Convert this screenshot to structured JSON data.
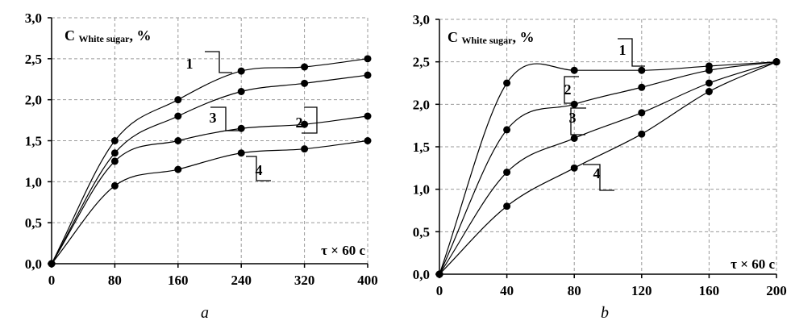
{
  "chart_data": [
    {
      "type": "line",
      "title": "C",
      "title_sub": "White sugar",
      "title_unit": ", %",
      "xlabel": "τ × 60 с",
      "caption": "a",
      "xlim": [
        0,
        400
      ],
      "ylim": [
        0,
        3
      ],
      "x_ticks": [
        "0",
        "80",
        "160",
        "240",
        "320",
        "400"
      ],
      "x_tick_values": [
        0,
        80,
        160,
        240,
        320,
        400
      ],
      "y_ticks": [
        "0,0",
        "0,5",
        "1,0",
        "1,5",
        "2,0",
        "2,5",
        "3,0"
      ],
      "y_tick_values": [
        0,
        0.5,
        1,
        1.5,
        2,
        2.5,
        3
      ],
      "grid": true,
      "series": [
        {
          "name": "1",
          "x": [
            0,
            80,
            160,
            240,
            320,
            400
          ],
          "y": [
            0,
            0.95,
            1.15,
            1.35,
            1.4,
            1.5
          ]
        },
        {
          "name": "2",
          "x": [
            0,
            80,
            160,
            240,
            320,
            400
          ],
          "y": [
            0,
            1.25,
            1.5,
            1.65,
            1.7,
            1.8
          ]
        },
        {
          "name": "3",
          "x": [
            0,
            80,
            160,
            240,
            320,
            400
          ],
          "y": [
            0,
            1.35,
            1.8,
            2.1,
            2.2,
            2.3
          ]
        },
        {
          "name": "4",
          "x": [
            0,
            80,
            160,
            240,
            320,
            400
          ],
          "y": [
            0,
            1.5,
            2.0,
            2.35,
            2.4,
            2.5
          ]
        }
      ]
    },
    {
      "type": "line",
      "title": "C",
      "title_sub": "White sugar",
      "title_unit": ", %",
      "xlabel": "τ × 60 с",
      "caption": "b",
      "xlim": [
        0,
        200
      ],
      "ylim": [
        0,
        3
      ],
      "x_ticks": [
        "0",
        "40",
        "80",
        "120",
        "160",
        "200"
      ],
      "x_tick_values": [
        0,
        40,
        80,
        120,
        160,
        200
      ],
      "y_ticks": [
        "0,0",
        "0,5",
        "1,0",
        "1,5",
        "2,0",
        "2,5",
        "3,0"
      ],
      "y_tick_values": [
        0,
        0.5,
        1,
        1.5,
        2,
        2.5,
        3
      ],
      "grid": true,
      "series": [
        {
          "name": "1",
          "x": [
            0,
            40,
            80,
            120,
            160,
            200
          ],
          "y": [
            0,
            0.8,
            1.25,
            1.65,
            2.15,
            2.5
          ]
        },
        {
          "name": "2",
          "x": [
            0,
            40,
            80,
            120,
            160,
            200
          ],
          "y": [
            0,
            1.2,
            1.6,
            1.9,
            2.25,
            2.5
          ]
        },
        {
          "name": "3",
          "x": [
            0,
            40,
            80,
            120,
            160,
            200
          ],
          "y": [
            0,
            1.7,
            2.0,
            2.2,
            2.4,
            2.5
          ]
        },
        {
          "name": "4",
          "x": [
            0,
            40,
            80,
            120,
            160,
            200
          ],
          "y": [
            0,
            2.25,
            2.4,
            2.4,
            2.45,
            2.5
          ]
        }
      ]
    }
  ]
}
